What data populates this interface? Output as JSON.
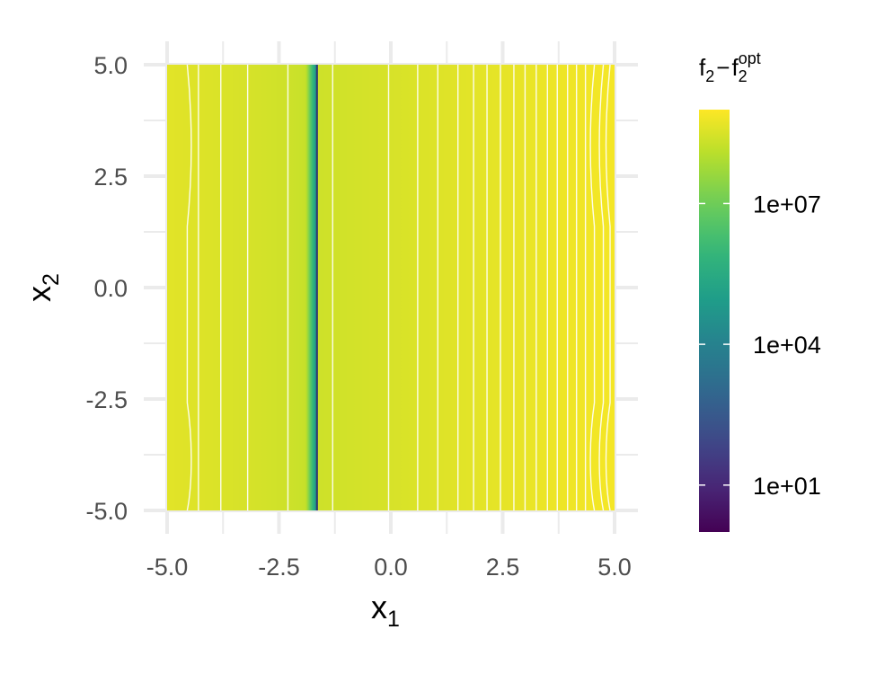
{
  "chart_data": {
    "type": "heatmap",
    "subtype": "filled-contour",
    "title": "",
    "xlabel": {
      "base": "x",
      "sub": "1"
    },
    "ylabel": {
      "base": "x",
      "sub": "2"
    },
    "xlim": [
      -5,
      5
    ],
    "ylim": [
      -5,
      5
    ],
    "x_ticks": [
      -5,
      -2.5,
      0,
      2.5,
      5
    ],
    "x_tick_labels": [
      "-5.0",
      "-2.5",
      "0.0",
      "2.5",
      "5.0"
    ],
    "y_ticks": [
      -5,
      -2.5,
      0,
      2.5,
      5
    ],
    "y_tick_labels": [
      "-5.0",
      "-2.5",
      "0.0",
      "2.5",
      "5.0"
    ],
    "grid": true,
    "colorscale": "viridis",
    "color_scale_type": "log10",
    "color_range": [
      1,
      1000000000
    ],
    "minimum_x1": -1.65,
    "contour_x1": [
      -4.55,
      -4.3,
      -3.8,
      -3.2,
      -2.3,
      -1.3,
      -0.05,
      0.6,
      1.05,
      1.5,
      1.85,
      2.15,
      2.45,
      2.75,
      3.0,
      3.25,
      3.5,
      3.72,
      3.95,
      4.15,
      4.35,
      4.55,
      4.75,
      4.9
    ],
    "legend": {
      "position": "right",
      "title": {
        "a": "f",
        "a_sub": "2",
        "minus": "−",
        "b": "f",
        "b_sub": "2",
        "b_sup": "opt"
      },
      "breaks": [
        10,
        10000,
        10000000
      ],
      "labels": [
        "1e+01",
        "1e+04",
        "1e+07"
      ]
    }
  }
}
